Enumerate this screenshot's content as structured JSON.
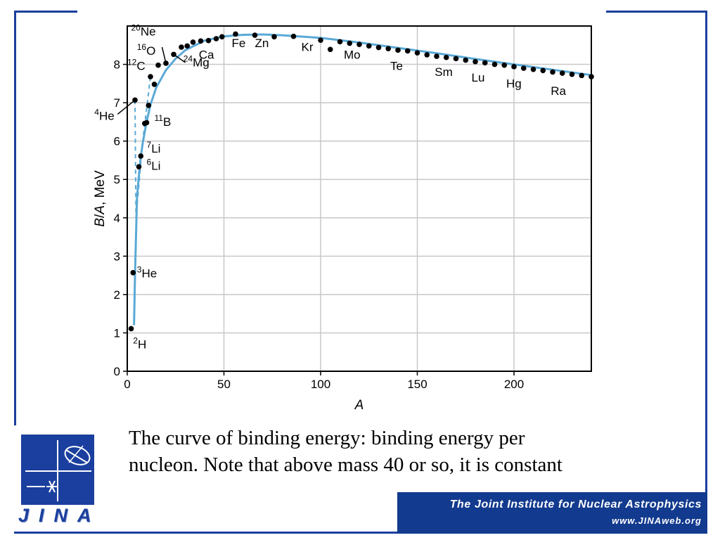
{
  "chart_data": {
    "type": "scatter",
    "xlabel": "A",
    "ylabel": "B/A, MeV",
    "xlim": [
      0,
      240
    ],
    "ylim": [
      0,
      9
    ],
    "xticks": [
      0,
      50,
      100,
      150,
      200
    ],
    "yticks": [
      0,
      1,
      2,
      3,
      4,
      5,
      6,
      7,
      8
    ],
    "grid": true,
    "colors": {
      "curve": "#5aa9d6",
      "point": "#000000",
      "grid": "#c8c8c8"
    },
    "points": [
      [
        2,
        1.11
      ],
      [
        3,
        2.57
      ],
      [
        4,
        7.07
      ],
      [
        6,
        5.33
      ],
      [
        7,
        5.61
      ],
      [
        9,
        6.46
      ],
      [
        10,
        6.48
      ],
      [
        11,
        6.93
      ],
      [
        12,
        7.68
      ],
      [
        14,
        7.48
      ],
      [
        16,
        7.98
      ],
      [
        20,
        8.03
      ],
      [
        24,
        8.26
      ],
      [
        28,
        8.45
      ],
      [
        31,
        8.48
      ],
      [
        34,
        8.58
      ],
      [
        38,
        8.61
      ],
      [
        42,
        8.62
      ],
      [
        46,
        8.67
      ],
      [
        49,
        8.72
      ],
      [
        56,
        8.79
      ],
      [
        66,
        8.76
      ],
      [
        76,
        8.72
      ],
      [
        86,
        8.73
      ],
      [
        100,
        8.63
      ],
      [
        105,
        8.39
      ],
      [
        110,
        8.59
      ],
      [
        115,
        8.55
      ],
      [
        120,
        8.52
      ],
      [
        125,
        8.48
      ],
      [
        130,
        8.44
      ],
      [
        135,
        8.41
      ],
      [
        140,
        8.37
      ],
      [
        145,
        8.35
      ],
      [
        150,
        8.3
      ],
      [
        155,
        8.25
      ],
      [
        160,
        8.21
      ],
      [
        165,
        8.18
      ],
      [
        170,
        8.15
      ],
      [
        175,
        8.11
      ],
      [
        180,
        8.07
      ],
      [
        185,
        8.04
      ],
      [
        190,
        8.0
      ],
      [
        195,
        7.98
      ],
      [
        200,
        7.94
      ],
      [
        205,
        7.9
      ],
      [
        210,
        7.87
      ],
      [
        215,
        7.84
      ],
      [
        220,
        7.8
      ],
      [
        225,
        7.77
      ],
      [
        230,
        7.74
      ],
      [
        235,
        7.71
      ],
      [
        240,
        7.68
      ]
    ],
    "curve": [
      [
        3.5,
        1.2
      ],
      [
        4,
        2.5
      ],
      [
        4.5,
        3.5
      ],
      [
        5,
        4.5
      ],
      [
        6,
        5.1
      ],
      [
        7,
        5.6
      ],
      [
        8,
        5.95
      ],
      [
        10,
        6.5
      ],
      [
        12,
        6.95
      ],
      [
        15,
        7.4
      ],
      [
        20,
        7.85
      ],
      [
        25,
        8.15
      ],
      [
        30,
        8.37
      ],
      [
        40,
        8.62
      ],
      [
        50,
        8.73
      ],
      [
        60,
        8.77
      ],
      [
        70,
        8.78
      ],
      [
        80,
        8.76
      ],
      [
        100,
        8.69
      ],
      [
        120,
        8.57
      ],
      [
        140,
        8.43
      ],
      [
        160,
        8.29
      ],
      [
        180,
        8.14
      ],
      [
        200,
        8.0
      ],
      [
        220,
        7.86
      ],
      [
        240,
        7.72
      ]
    ],
    "dashed_curve": [
      [
        4,
        7.07
      ],
      [
        4.5,
        4.0
      ],
      [
        8,
        6.0
      ],
      [
        12,
        7.68
      ]
    ],
    "labels": [
      {
        "text": "Ne",
        "iso": "20",
        "x": 2,
        "y": 8.75
      },
      {
        "text": "O",
        "iso": "16",
        "x": 5,
        "y": 8.25
      },
      {
        "text": "C",
        "iso": "12",
        "x": 0,
        "y": 7.85
      },
      {
        "text": "He",
        "iso": "4",
        "x": -17,
        "y": 6.55
      },
      {
        "text": "B",
        "iso": "11",
        "x": 14,
        "y": 6.4
      },
      {
        "text": "Li",
        "iso": "7",
        "x": 10,
        "y": 5.7
      },
      {
        "text": "Li",
        "iso": "6",
        "x": 10,
        "y": 5.25
      },
      {
        "text": "He",
        "iso": "3",
        "x": 5,
        "y": 2.45
      },
      {
        "text": "H",
        "iso": "2",
        "x": 3,
        "y": 0.6
      },
      {
        "text": "Mg",
        "iso": "24",
        "x": 29,
        "y": 7.95
      },
      {
        "text": "Ca",
        "iso": "",
        "x": 37,
        "y": 8.15
      },
      {
        "text": "Fe",
        "iso": "",
        "x": 54,
        "y": 8.45
      },
      {
        "text": "Zn",
        "iso": "",
        "x": 66,
        "y": 8.45
      },
      {
        "text": "Kr",
        "iso": "",
        "x": 90,
        "y": 8.35
      },
      {
        "text": "Mo",
        "iso": "",
        "x": 112,
        "y": 8.15
      },
      {
        "text": "Te",
        "iso": "",
        "x": 136,
        "y": 7.85
      },
      {
        "text": "Sm",
        "iso": "",
        "x": 159,
        "y": 7.7
      },
      {
        "text": "Lu",
        "iso": "",
        "x": 178,
        "y": 7.55
      },
      {
        "text": "Hg",
        "iso": "",
        "x": 196,
        "y": 7.4
      },
      {
        "text": "Ra",
        "iso": "",
        "x": 219,
        "y": 7.2
      }
    ],
    "pointer_lines": [
      [
        [
          4,
          7.07
        ],
        [
          -5,
          6.7
        ]
      ],
      [
        [
          20,
          8.03
        ],
        [
          18,
          8.45
        ]
      ],
      [
        [
          24,
          8.26
        ],
        [
          30,
          8.05
        ]
      ]
    ]
  },
  "caption": {
    "line1": "The curve of binding energy: binding energy per",
    "line2": "nucleon. Note that above mass 40 or so, it is constant"
  },
  "logo": {
    "letters": "JINA",
    "color": "#1a3f9e"
  },
  "banner": {
    "title": "The Joint Institute for Nuclear Astrophysics",
    "url": "www.JINAweb.org",
    "color": "#123a8e"
  }
}
